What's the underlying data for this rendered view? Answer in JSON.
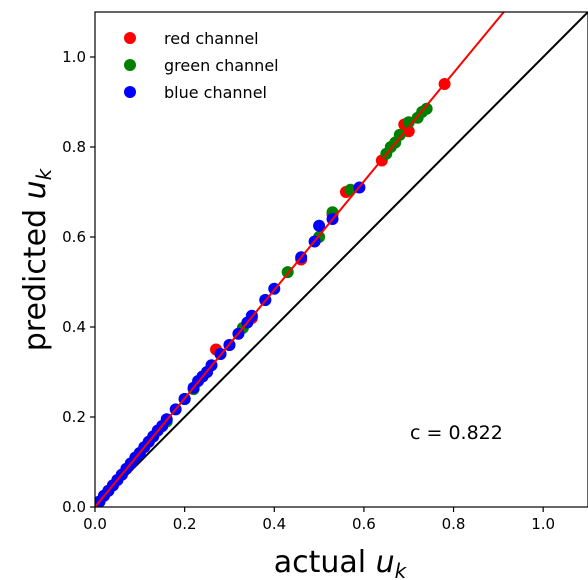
{
  "chart_data": {
    "type": "scatter",
    "xlabel": "actual",
    "xlabel_var": "u",
    "xlabel_sub": "k",
    "ylabel": "predicted",
    "ylabel_var": "u",
    "ylabel_sub": "k",
    "xlim": [
      0.0,
      1.1
    ],
    "ylim": [
      0.0,
      1.1
    ],
    "xticks": [
      0.0,
      0.2,
      0.4,
      0.6,
      0.8,
      1.0
    ],
    "yticks": [
      0.0,
      0.2,
      0.4,
      0.6,
      0.8,
      1.0
    ],
    "xtick_labels": [
      "0.0",
      "0.2",
      "0.4",
      "0.6",
      "0.8",
      "1.0"
    ],
    "ytick_labels": [
      "0.0",
      "0.2",
      "0.4",
      "0.6",
      "0.8",
      "1.0"
    ],
    "legend_position": "top-left",
    "grid": false,
    "annotation": "c = 0.822",
    "fit_line": {
      "color": "#ff0000",
      "slope": 1.206,
      "intercept": 0.0
    },
    "identity_line": {
      "color": "#000000",
      "slope": 1.0,
      "intercept": 0.0
    },
    "series": [
      {
        "name": "red channel",
        "color": "#ff0000",
        "x": [
          0.01,
          0.02,
          0.04,
          0.06,
          0.08,
          0.1,
          0.12,
          0.15,
          0.2,
          0.24,
          0.27,
          0.3,
          0.35,
          0.46,
          0.53,
          0.56,
          0.64,
          0.69,
          0.7,
          0.78
        ],
        "y": [
          0.012,
          0.025,
          0.048,
          0.072,
          0.096,
          0.12,
          0.145,
          0.18,
          0.24,
          0.29,
          0.35,
          0.36,
          0.42,
          0.55,
          0.65,
          0.7,
          0.77,
          0.85,
          0.835,
          0.94
        ]
      },
      {
        "name": "green channel",
        "color": "#008000",
        "x": [
          0.01,
          0.03,
          0.05,
          0.08,
          0.1,
          0.13,
          0.16,
          0.2,
          0.22,
          0.25,
          0.28,
          0.33,
          0.38,
          0.43,
          0.5,
          0.53,
          0.57,
          0.65,
          0.66,
          0.67,
          0.68,
          0.7,
          0.72,
          0.73,
          0.74
        ],
        "y": [
          0.012,
          0.036,
          0.06,
          0.097,
          0.12,
          0.157,
          0.19,
          0.24,
          0.262,
          0.3,
          0.34,
          0.398,
          0.46,
          0.522,
          0.6,
          0.655,
          0.705,
          0.785,
          0.8,
          0.81,
          0.827,
          0.855,
          0.865,
          0.878,
          0.885
        ]
      },
      {
        "name": "blue channel",
        "color": "#0000ff",
        "x": [
          0.0,
          0.01,
          0.02,
          0.03,
          0.04,
          0.05,
          0.06,
          0.07,
          0.08,
          0.09,
          0.1,
          0.11,
          0.12,
          0.13,
          0.14,
          0.15,
          0.16,
          0.18,
          0.2,
          0.22,
          0.23,
          0.24,
          0.25,
          0.26,
          0.28,
          0.3,
          0.32,
          0.34,
          0.35,
          0.38,
          0.4,
          0.46,
          0.49,
          0.5,
          0.53,
          0.59
        ],
        "y": [
          0.003,
          0.012,
          0.025,
          0.036,
          0.048,
          0.06,
          0.072,
          0.085,
          0.097,
          0.11,
          0.12,
          0.133,
          0.145,
          0.157,
          0.17,
          0.18,
          0.195,
          0.217,
          0.24,
          0.265,
          0.28,
          0.29,
          0.3,
          0.315,
          0.34,
          0.36,
          0.385,
          0.41,
          0.425,
          0.46,
          0.485,
          0.555,
          0.59,
          0.625,
          0.64,
          0.71
        ]
      }
    ]
  }
}
